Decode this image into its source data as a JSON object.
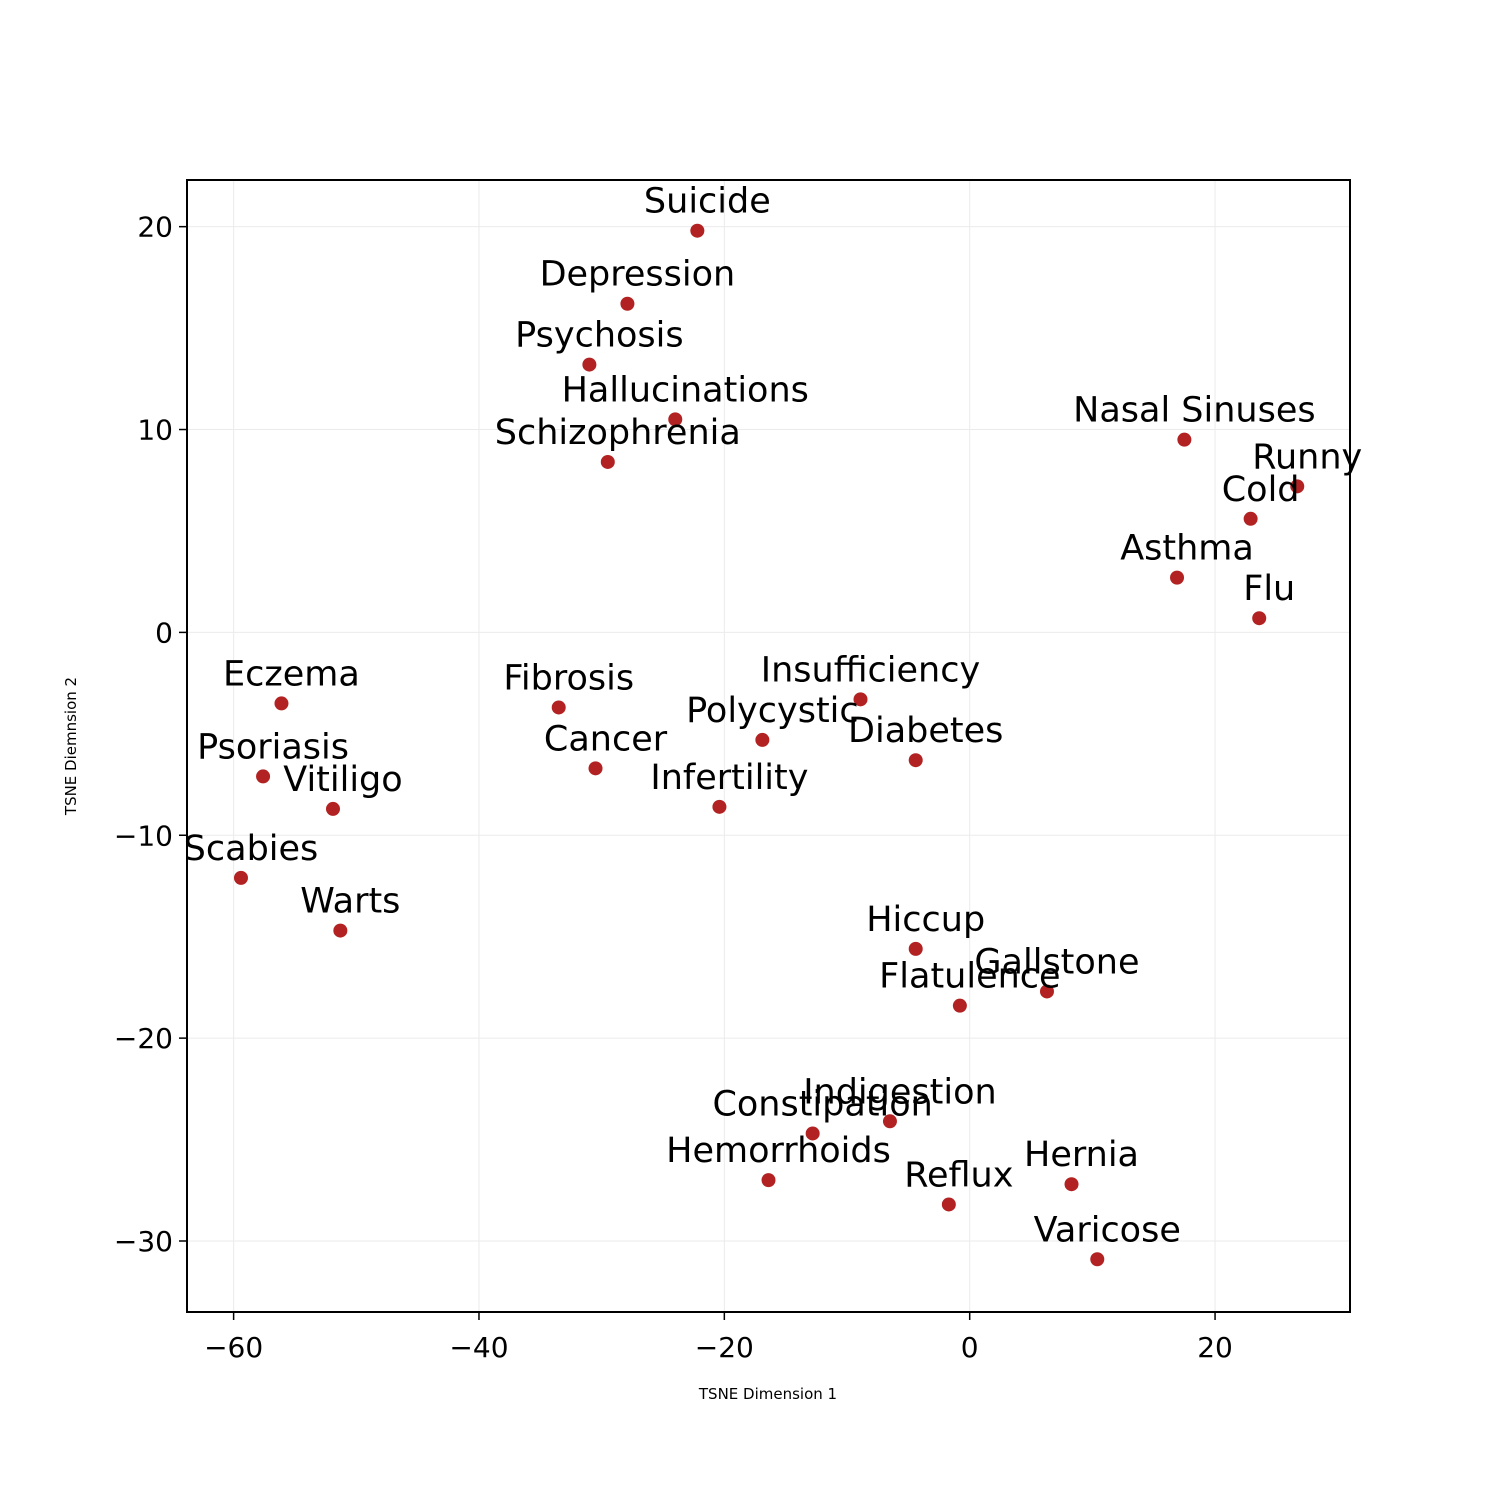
{
  "chart_data": {
    "type": "scatter",
    "title": "",
    "xlabel": "TSNE Dimension 1",
    "ylabel": "TSNE Diemnsion 2",
    "xlim": [
      -63.8,
      31.0
    ],
    "ylim": [
      -33.5,
      22.3
    ],
    "xticks": [
      -60,
      -40,
      -20,
      0,
      20
    ],
    "yticks": [
      -30,
      -20,
      -10,
      0,
      10,
      20
    ],
    "grid": true,
    "legend": "none",
    "point_color": "#b22222",
    "points": [
      {
        "label": "Suicide",
        "x": -22.2,
        "y": 19.8
      },
      {
        "label": "Depression",
        "x": -27.9,
        "y": 16.2
      },
      {
        "label": "Psychosis",
        "x": -31.0,
        "y": 13.2
      },
      {
        "label": "Hallucinations",
        "x": -24.0,
        "y": 10.5
      },
      {
        "label": "Schizophrenia",
        "x": -29.5,
        "y": 8.4
      },
      {
        "label": "Nasal Sinuses",
        "x": 17.5,
        "y": 9.5
      },
      {
        "label": "Runny",
        "x": 26.7,
        "y": 7.2
      },
      {
        "label": "Cold",
        "x": 22.9,
        "y": 5.6
      },
      {
        "label": "Asthma",
        "x": 16.9,
        "y": 2.7
      },
      {
        "label": "Flu",
        "x": 23.6,
        "y": 0.7
      },
      {
        "label": "Eczema",
        "x": -56.1,
        "y": -3.5
      },
      {
        "label": "Fibrosis",
        "x": -33.5,
        "y": -3.7
      },
      {
        "label": "Insufficiency",
        "x": -8.9,
        "y": -3.3
      },
      {
        "label": "Polycystic",
        "x": -16.9,
        "y": -5.3
      },
      {
        "label": "Diabetes",
        "x": -4.4,
        "y": -6.3
      },
      {
        "label": "Cancer",
        "x": -30.5,
        "y": -6.7
      },
      {
        "label": "Psoriasis",
        "x": -57.6,
        "y": -7.1
      },
      {
        "label": "Vitiligo",
        "x": -51.9,
        "y": -8.7
      },
      {
        "label": "Infertility",
        "x": -20.4,
        "y": -8.6
      },
      {
        "label": "Scabies",
        "x": -59.4,
        "y": -12.1
      },
      {
        "label": "Warts",
        "x": -51.3,
        "y": -14.7
      },
      {
        "label": "Hiccup",
        "x": -4.4,
        "y": -15.6
      },
      {
        "label": "Gallstone",
        "x": 6.3,
        "y": -17.7
      },
      {
        "label": "Flatulence",
        "x": -0.8,
        "y": -18.4
      },
      {
        "label": "Indigestion",
        "x": -6.5,
        "y": -24.1
      },
      {
        "label": "Constipation",
        "x": -12.8,
        "y": -24.7
      },
      {
        "label": "Hemorrhoids",
        "x": -16.4,
        "y": -27.0
      },
      {
        "label": "Reflux",
        "x": -1.7,
        "y": -28.2
      },
      {
        "label": "Hernia",
        "x": 8.3,
        "y": -27.2
      },
      {
        "label": "Varicose",
        "x": 10.4,
        "y": -30.9
      }
    ]
  }
}
